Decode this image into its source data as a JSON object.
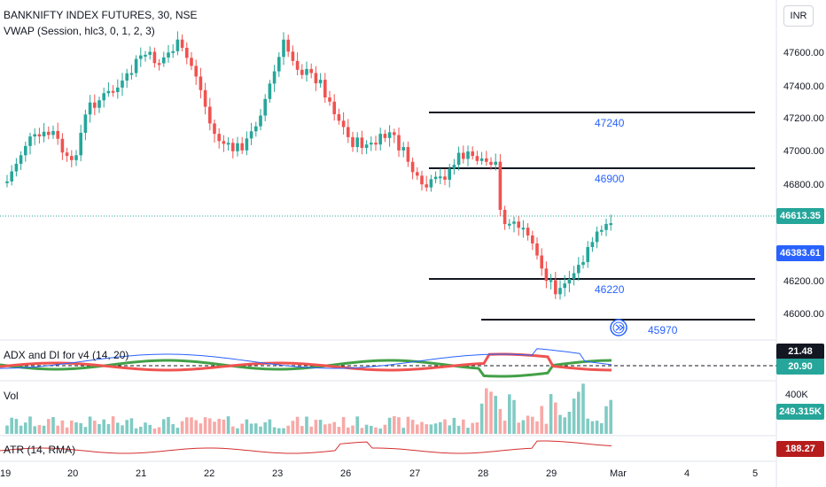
{
  "header": {
    "symbol": "BANKNIFTY INDEX FUTURES, 30, NSE",
    "vwap_label": "VWAP (Session, hlc3, 0, 1, 2, 3)",
    "currency": "INR"
  },
  "price_axis": {
    "ticks": [
      "47600.00",
      "47400.00",
      "47200.00",
      "47000.00",
      "46800.00",
      "46200.00",
      "46000.00"
    ],
    "last_price": "46613.35",
    "vwap_price": "46383.61",
    "last_price_color": "#26a69a",
    "vwap_color": "#2962ff"
  },
  "levels": {
    "l47240": "47240",
    "l46900": "46900",
    "l46220": "46220",
    "l45970": "45970"
  },
  "adx_pane": {
    "label": "ADX and DI for v4 (14, 20)",
    "value1": "21.48",
    "value2": "20.90"
  },
  "vol_pane": {
    "label": "Vol",
    "tick": "400K",
    "value": "249.315K"
  },
  "atr_pane": {
    "label": "ATR (14, RMA)",
    "value": "188.27"
  },
  "time_axis": {
    "labels": [
      "19",
      "20",
      "21",
      "22",
      "23",
      "26",
      "27",
      "28",
      "29",
      "Mar",
      "4",
      "5"
    ]
  },
  "colors": {
    "up": "#26a69a",
    "down": "#ef5350",
    "level_line": "#131722",
    "adx_line": "#2962ff",
    "atr_line": "#d32f2f"
  }
}
